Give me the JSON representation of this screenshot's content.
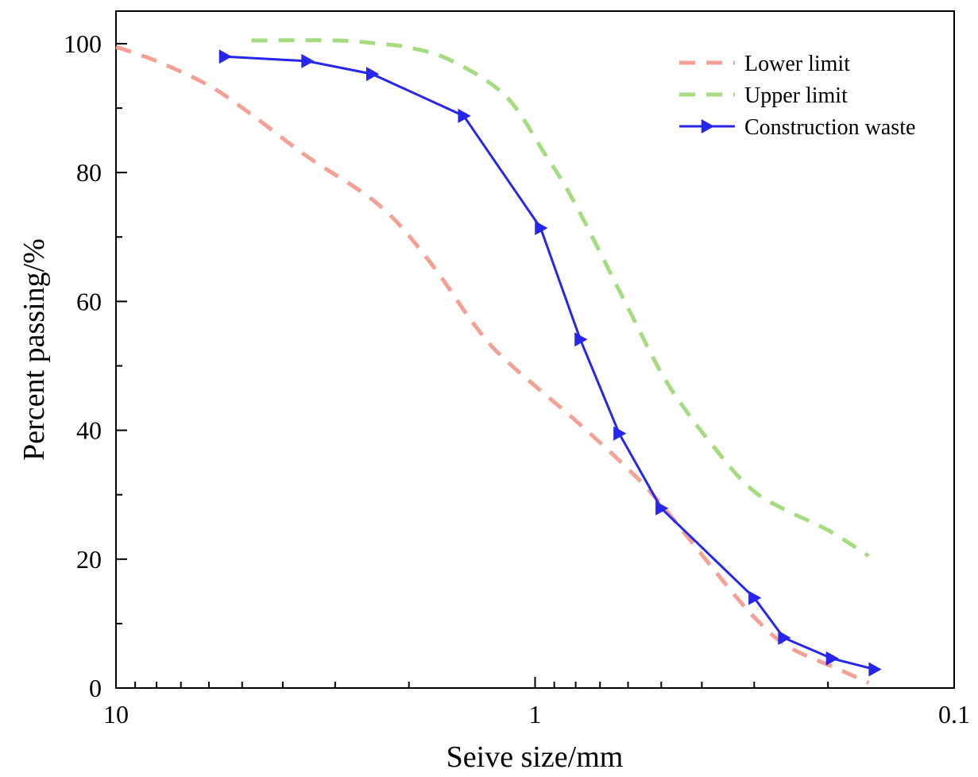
{
  "chart_data": {
    "type": "line",
    "title": "",
    "xlabel": "Seive size/mm",
    "ylabel": "Percent passing/%",
    "xscale": "log",
    "xaxis_reversed": true,
    "xlim": [
      10,
      0.1
    ],
    "ylim": [
      0,
      105
    ],
    "x_ticks": [
      {
        "value": 10,
        "label": "10"
      },
      {
        "value": 1,
        "label": "1"
      },
      {
        "value": 0.1,
        "label": "0.1"
      }
    ],
    "y_ticks": [
      {
        "value": 0,
        "label": "0"
      },
      {
        "value": 20,
        "label": "20"
      },
      {
        "value": 40,
        "label": "40"
      },
      {
        "value": 60,
        "label": "60"
      },
      {
        "value": 80,
        "label": "80"
      },
      {
        "value": 100,
        "label": "100"
      }
    ],
    "grid": false,
    "legend_position": "top-right",
    "series": [
      {
        "name": "Lower limit",
        "color": "#f4a195",
        "style": "dashed",
        "marker": "none",
        "x": [
          10,
          8,
          6,
          4.75,
          3.5,
          2.36,
          1.8,
          1.4,
          1.18,
          0.8,
          0.6,
          0.5,
          0.36,
          0.3,
          0.25,
          0.19,
          0.16
        ],
        "y": [
          99.5,
          97.3,
          93.5,
          89,
          82.5,
          75,
          66.5,
          56.5,
          51,
          41.5,
          34,
          28.5,
          17,
          11,
          6.5,
          3,
          0.8
        ]
      },
      {
        "name": "Upper limit",
        "color": "#a6dc80",
        "style": "dashed",
        "marker": "none",
        "x": [
          4.75,
          3,
          2.36,
          2,
          1.6,
          1.18,
          0.95,
          0.8,
          0.6,
          0.48,
          0.36,
          0.3,
          0.25,
          0.2,
          0.16
        ],
        "y": [
          100.5,
          100.5,
          100,
          99.4,
          97.5,
          92,
          83,
          75,
          59,
          47,
          36,
          30.5,
          27.5,
          24.5,
          20.5
        ]
      },
      {
        "name": "Construction waste",
        "color": "#2626ee",
        "style": "solid",
        "marker": "triangle-right",
        "x": [
          5.5,
          3.5,
          2.45,
          1.48,
          0.97,
          0.78,
          0.63,
          0.5,
          0.3,
          0.255,
          0.196,
          0.155
        ],
        "y": [
          98,
          97.3,
          95.3,
          88.8,
          71.4,
          54.1,
          39.5,
          27.9,
          14,
          7.8,
          4.6,
          2.9
        ]
      }
    ]
  }
}
